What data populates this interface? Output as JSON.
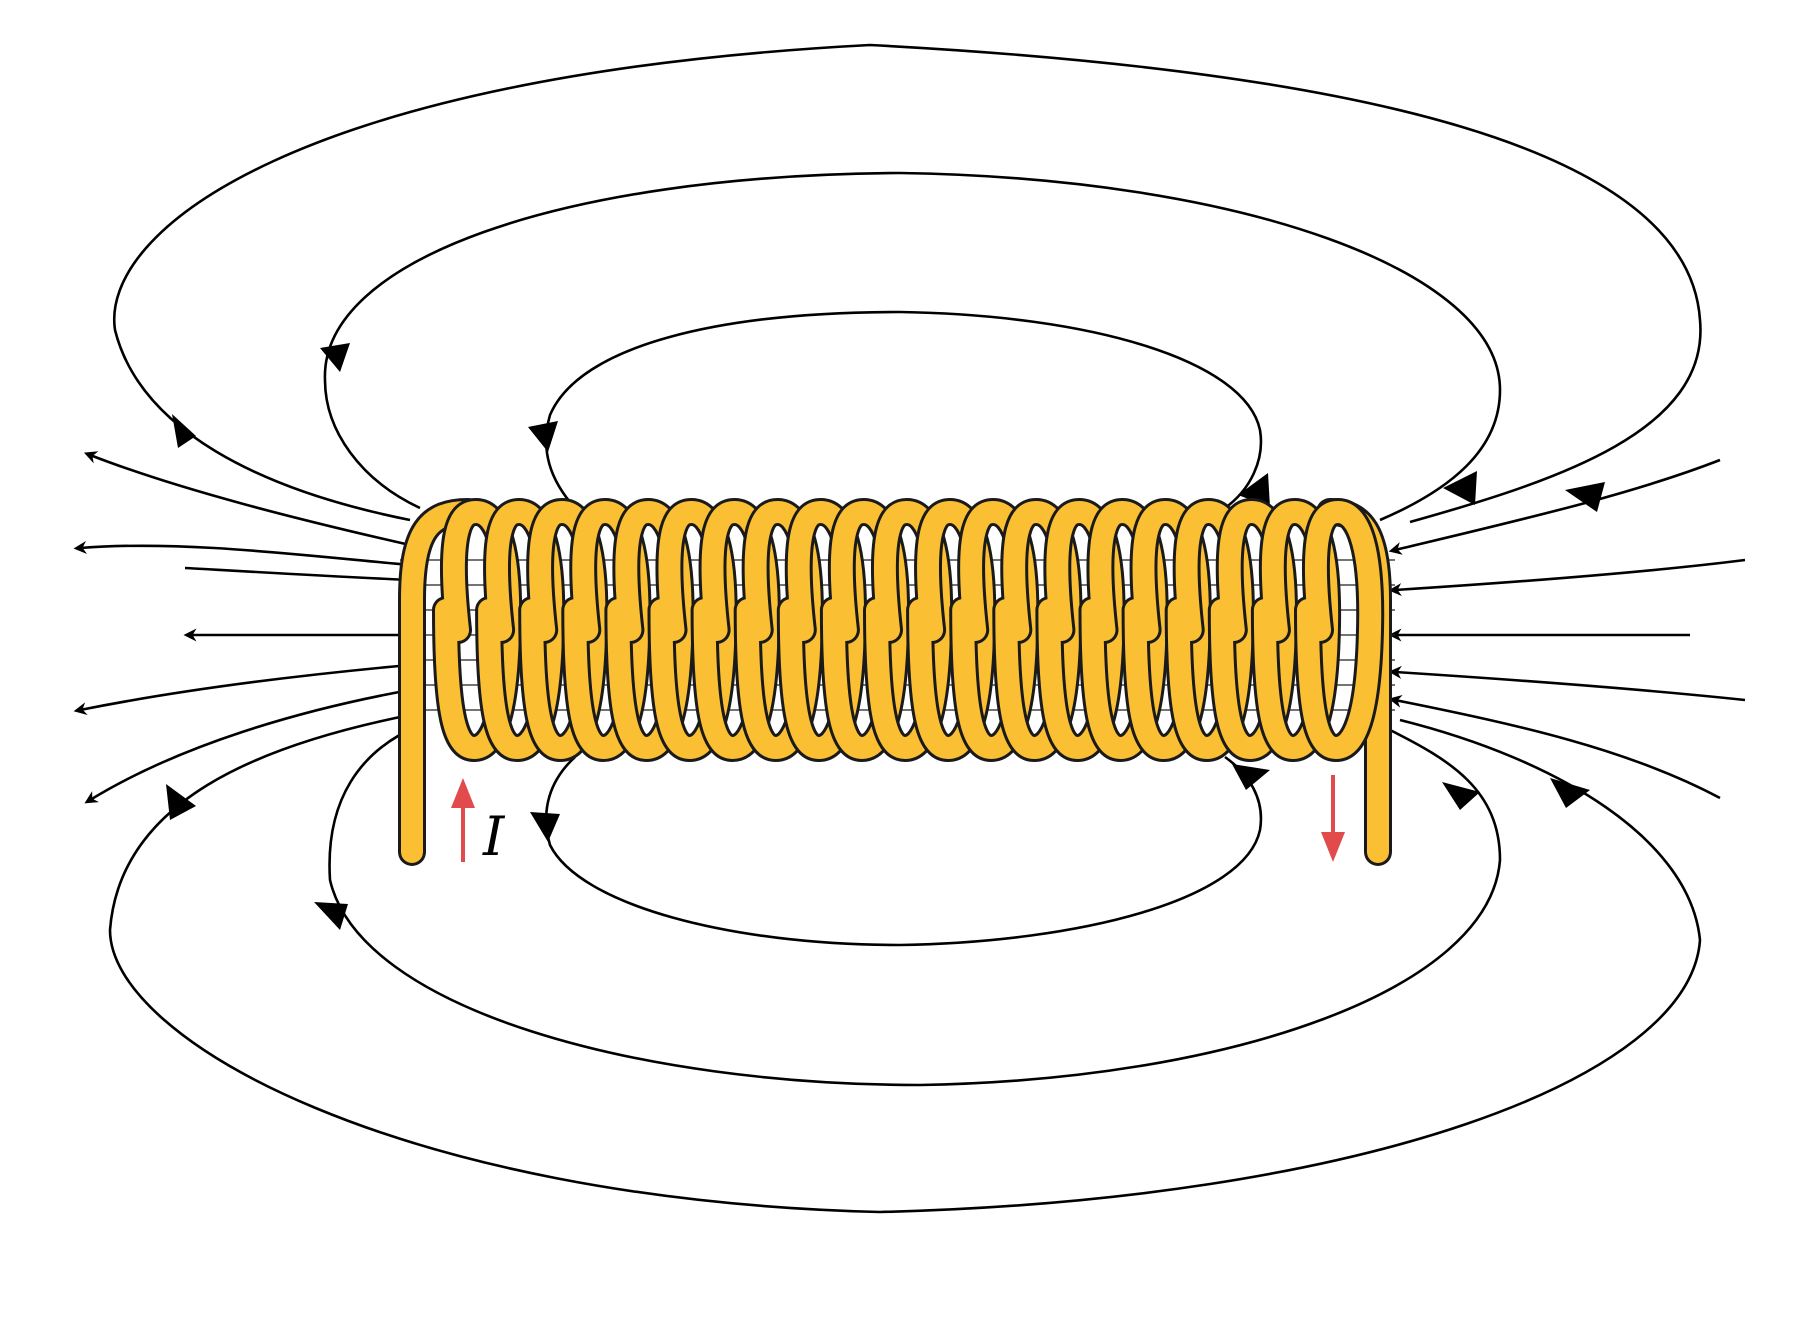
{
  "diagram": {
    "current_label": "I"
  },
  "colors": {
    "coil": "#FBBF33",
    "coil_outline": "#1a1a1a",
    "field_line": "#000000",
    "current_arrow": "#E24B4B",
    "background": "#ffffff"
  },
  "solenoid": {
    "turns": 21
  }
}
